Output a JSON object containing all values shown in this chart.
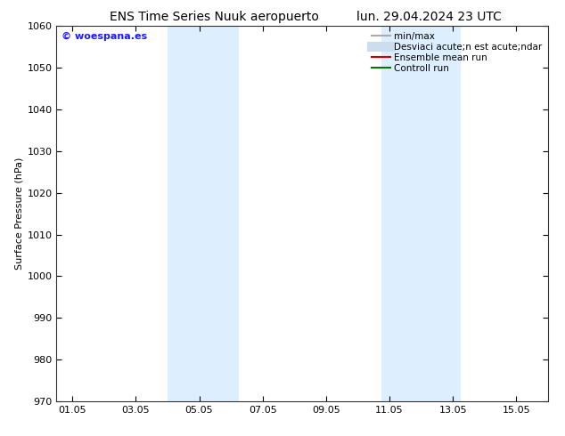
{
  "title_left": "ENS Time Series Nuuk aeropuerto",
  "title_right": "lun. 29.04.2024 23 UTC",
  "ylabel": "Surface Pressure (hPa)",
  "ylim": [
    970,
    1060
  ],
  "yticks": [
    970,
    980,
    990,
    1000,
    1010,
    1020,
    1030,
    1040,
    1050,
    1060
  ],
  "xtick_labels": [
    "01.05",
    "03.05",
    "05.05",
    "07.05",
    "09.05",
    "11.05",
    "13.05",
    "15.05"
  ],
  "xtick_positions": [
    1,
    3,
    5,
    7,
    9,
    11,
    13,
    15
  ],
  "xlim": [
    0.5,
    16.0
  ],
  "shaded_bands": [
    {
      "xmin": 4.0,
      "xmax": 4.75
    },
    {
      "xmin": 4.75,
      "xmax": 6.25
    },
    {
      "xmin": 10.75,
      "xmax": 11.5
    },
    {
      "xmin": 11.5,
      "xmax": 13.25
    }
  ],
  "shade_color": "#ddeeff",
  "background_color": "#ffffff",
  "watermark": "© woespana.es",
  "watermark_color": "#1a1aff",
  "legend_label_minmax": "min/max",
  "legend_label_desv": "Desviaci acute;n est acute;ndar",
  "legend_label_ensemble": "Ensemble mean run",
  "legend_label_control": "Controll run",
  "legend_color_minmax": "#aaaaaa",
  "legend_color_desv": "#ccddee",
  "legend_color_ensemble": "#cc0000",
  "legend_color_control": "#007700",
  "title_fontsize": 10,
  "axis_label_fontsize": 8,
  "tick_fontsize": 8,
  "legend_fontsize": 7.5
}
